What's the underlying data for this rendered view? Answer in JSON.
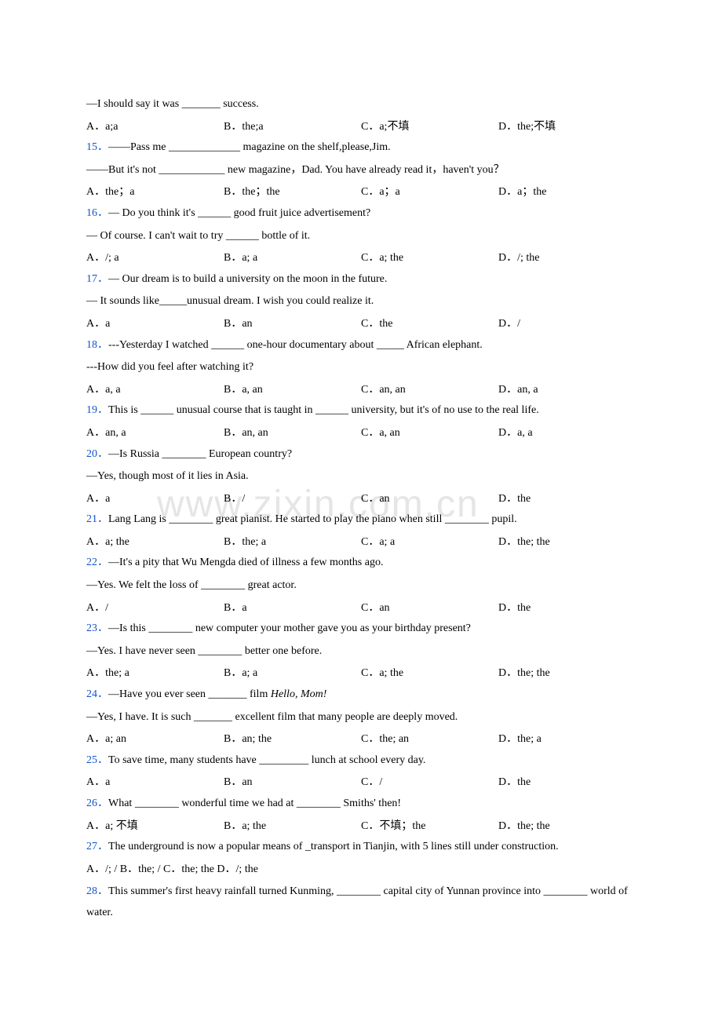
{
  "watermark": "www.zixin.com.cn",
  "colors": {
    "qnum": "#1155cc",
    "text": "#000000",
    "background": "#ffffff",
    "watermark": "rgba(150,150,150,0.25)"
  },
  "fonts": {
    "body_family": "Times New Roman",
    "body_size_pt": 11,
    "watermark_size_pt": 36
  },
  "questions": [
    {
      "pre_lines": [
        "—I should say it was _______ success."
      ],
      "num": "",
      "options": {
        "A": "a;a",
        "B": "the;a",
        "C": "a;不填",
        "D": "the;不填"
      }
    },
    {
      "num": "15．",
      "lines": [
        "——Pass me _____________ magazine on the shelf,please,Jim.",
        "——But it's not ____________ new magazine，Dad. You have already read it，haven't you？"
      ],
      "options": {
        "A": "the；a",
        "B": "the；the",
        "C": "a；a",
        "D": "a；the"
      }
    },
    {
      "num": "16．",
      "lines": [
        "— Do you think it's ______ good fruit juice advertisement?",
        "— Of course. I can't wait to try ______ bottle of it."
      ],
      "options": {
        "A": "/; a",
        "B": "a; a",
        "C": "a; the",
        "D": "/; the"
      }
    },
    {
      "num": "17．",
      "lines": [
        "— Our dream is to build a university on the moon in the future.",
        "— It sounds like_____unusual dream. I wish you could realize it."
      ],
      "options": {
        "A": "a",
        "B": "an",
        "C": "the",
        "D": "/"
      }
    },
    {
      "num": "18．",
      "lines": [
        "---Yesterday I watched ______ one-hour documentary about _____ African elephant.",
        "---How did you feel after watching it?"
      ],
      "options": {
        "A": "a, a",
        "B": "a, an",
        "C": "an, an",
        "D": "an, a"
      }
    },
    {
      "num": "19．",
      "lines": [
        "This is ______ unusual course that is taught in ______ university, but it's of no use to the real life."
      ],
      "options": {
        "A": "an, a",
        "B": "an, an",
        "C": "a, an",
        "D": "a, a"
      }
    },
    {
      "num": "20．",
      "lines": [
        "—Is Russia ________ European country?",
        "—Yes, though most of it lies in Asia."
      ],
      "options": {
        "A": "a",
        "B": "/",
        "C": "an",
        "D": "the"
      }
    },
    {
      "num": "21．",
      "lines": [
        "Lang Lang is ________ great pianist. He started to play the piano when still ________ pupil."
      ],
      "options": {
        "A": "a; the",
        "B": "the; a",
        "C": "a; a",
        "D": "the; the"
      }
    },
    {
      "num": "22．",
      "lines": [
        "—It's a pity that Wu Mengda died of illness a few months ago.",
        "—Yes. We felt the loss of ________ great actor."
      ],
      "options": {
        "A": "/",
        "B": "a",
        "C": "an",
        "D": "the"
      }
    },
    {
      "num": "23．",
      "lines": [
        "—Is this ________ new computer your mother gave you as your birthday present?",
        "—Yes. I have never seen ________ better one before."
      ],
      "options": {
        "A": "the; a",
        "B": "a; a",
        "C": "a; the",
        "D": "the; the"
      }
    },
    {
      "num": "24．",
      "lines_html": [
        "—Have you ever seen _______ film <span class=\"italic\">Hello, Mom!</span>",
        "—Yes, I have. It is such _______ excellent film that many people are deeply moved."
      ],
      "options": {
        "A": "a; an",
        "B": "an; the",
        "C": "the; an",
        "D": "the; a"
      }
    },
    {
      "num": "25．",
      "lines": [
        "To save time, many students have _________ lunch at school every day."
      ],
      "options": {
        "A": "a",
        "B": "an",
        "C": "/",
        "D": "the"
      }
    },
    {
      "num": "26．",
      "lines": [
        "What ________ wonderful time we had at ________ Smiths' then!"
      ],
      "options": {
        "A": "a; 不填",
        "B": "a; the",
        "C": "不填；the",
        "D": "the; the"
      }
    },
    {
      "num": "27．",
      "lines": [
        "The underground is now a popular means of _transport in Tianjin, with 5 lines still under construction."
      ],
      "options_inline": "A．/; /    B．the; /    C．the; the    D．/; the"
    },
    {
      "num": "28．",
      "lines": [
        "This summer's first heavy rainfall turned Kunming, ________ capital city of Yunnan province into ________ world of water."
      ]
    }
  ]
}
